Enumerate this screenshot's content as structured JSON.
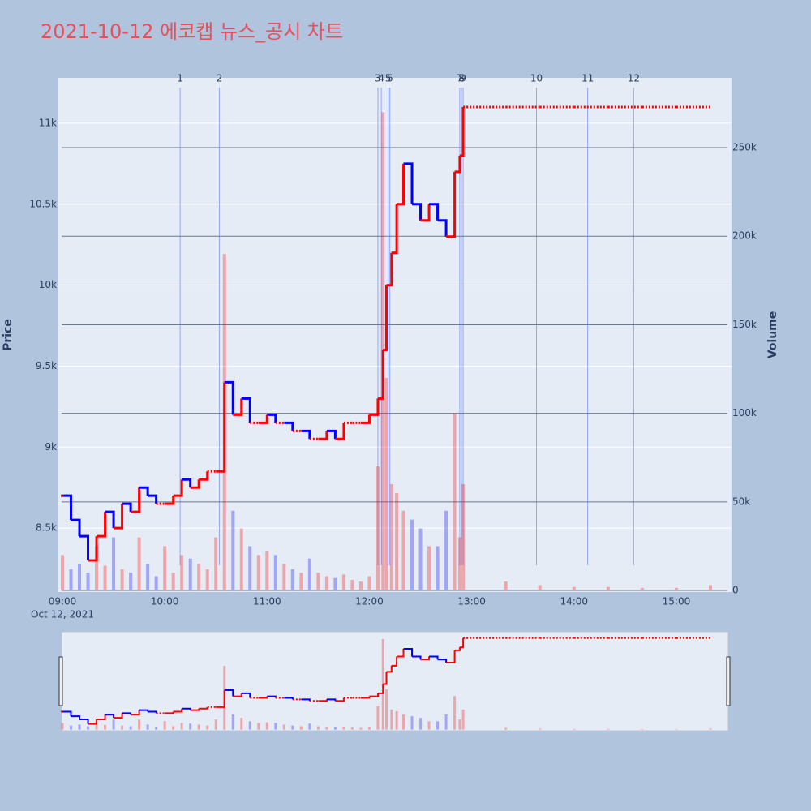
{
  "chart_data": {
    "type": "price-volume",
    "title": "2021-10-12 에코캡 뉴스_공시 차트",
    "y_label": "Price",
    "y2_label": "Volume",
    "date_label": "Oct 12, 2021",
    "up_color": "#ff0000",
    "down_color": "#0000ff",
    "x": [
      "09:00",
      "09:05",
      "09:10",
      "09:15",
      "09:20",
      "09:25",
      "09:30",
      "09:35",
      "09:40",
      "09:45",
      "09:50",
      "09:55",
      "10:00",
      "10:05",
      "10:10",
      "10:15",
      "10:20",
      "10:25",
      "10:30",
      "10:35",
      "10:40",
      "10:45",
      "10:50",
      "10:55",
      "11:00",
      "11:05",
      "11:10",
      "11:15",
      "11:20",
      "11:25",
      "11:30",
      "11:35",
      "11:40",
      "11:45",
      "11:50",
      "11:55",
      "12:00",
      "12:05",
      "12:08",
      "12:10",
      "12:13",
      "12:16",
      "12:20",
      "12:25",
      "12:30",
      "12:35",
      "12:40",
      "12:45",
      "12:50",
      "12:53",
      "12:55",
      "13:20",
      "13:40",
      "14:00",
      "14:20",
      "14:40",
      "15:00",
      "15:20"
    ],
    "price": [
      8700,
      8550,
      8450,
      8300,
      8450,
      8600,
      8500,
      8650,
      8600,
      8750,
      8700,
      8650,
      8650,
      8700,
      8800,
      8750,
      8800,
      8850,
      8850,
      9400,
      9200,
      9300,
      9150,
      9150,
      9200,
      9150,
      9150,
      9100,
      9100,
      9050,
      9050,
      9100,
      9050,
      9150,
      9150,
      9150,
      9200,
      9300,
      9600,
      10000,
      10200,
      10500,
      10750,
      10500,
      10400,
      10500,
      10400,
      10300,
      10700,
      10800,
      11100,
      11100,
      11100,
      11100,
      11100,
      11100,
      11100,
      11100
    ],
    "volume": [
      20000,
      12000,
      15000,
      10000,
      25000,
      14000,
      30000,
      12000,
      10000,
      30000,
      15000,
      8000,
      25000,
      10000,
      20000,
      18000,
      15000,
      12000,
      30000,
      190000,
      45000,
      35000,
      25000,
      20000,
      22000,
      20000,
      15000,
      12000,
      10000,
      18000,
      10000,
      8000,
      7000,
      9000,
      6000,
      5000,
      8000,
      70000,
      270000,
      120000,
      60000,
      55000,
      45000,
      40000,
      35000,
      25000,
      25000,
      45000,
      100000,
      30000,
      60000,
      5000,
      3000,
      2000,
      2000,
      1500,
      1500,
      3000
    ],
    "events": [
      {
        "label": "1",
        "x": "10:09"
      },
      {
        "label": "2",
        "x": "10:32"
      },
      {
        "label": "3",
        "x": "12:05"
      },
      {
        "label": "4",
        "x": "12:07"
      },
      {
        "label": "5",
        "x": "12:11"
      },
      {
        "label": "6",
        "x": "12:12"
      },
      {
        "label": "7",
        "x": "12:53"
      },
      {
        "label": "8",
        "x": "12:54"
      },
      {
        "label": "9",
        "x": "12:55"
      },
      {
        "label": "10",
        "x": "13:38"
      },
      {
        "label": "11",
        "x": "14:08"
      },
      {
        "label": "12",
        "x": "14:35"
      }
    ],
    "xlim": [
      "09:00",
      "15:30"
    ],
    "xticks": [
      "09:00",
      "10:00",
      "11:00",
      "12:00",
      "13:00",
      "14:00",
      "15:00"
    ],
    "ylim": [
      8105,
      11280
    ],
    "yticks": [
      {
        "value": 8500,
        "label": "8.5k"
      },
      {
        "value": 9000,
        "label": "9k"
      },
      {
        "value": 9500,
        "label": "9.5k"
      },
      {
        "value": 10000,
        "label": "10k"
      },
      {
        "value": 10500,
        "label": "10.5k"
      },
      {
        "value": 11000,
        "label": "11k"
      }
    ],
    "y2lim": [
      -900,
      289400
    ],
    "y2ticks": [
      0,
      {
        "value": 50000,
        "label": "50k"
      },
      {
        "value": 100000,
        "label": "100k"
      },
      {
        "value": 150000,
        "label": "150k"
      },
      {
        "value": 200000,
        "label": "200k"
      },
      {
        "value": 250000,
        "label": "250k"
      }
    ]
  }
}
